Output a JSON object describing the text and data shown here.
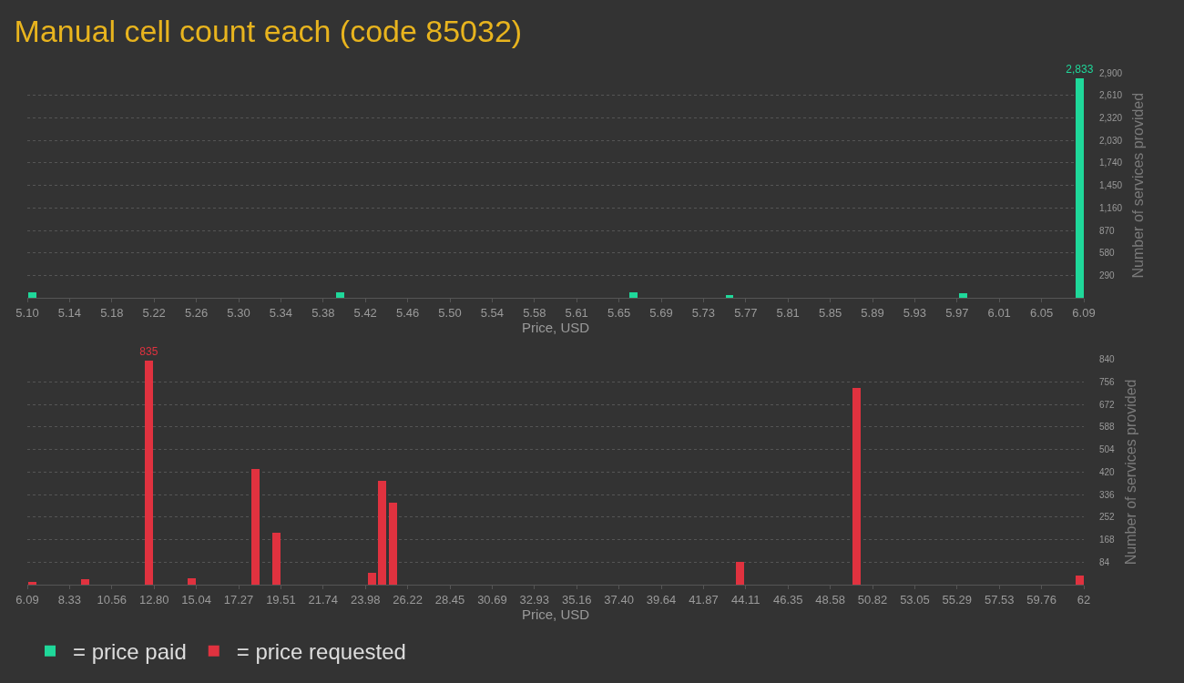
{
  "chart_data": [
    {
      "type": "bar",
      "title": "Manual cell count each (code 85032)",
      "xlabel": "Price, USD",
      "ylabel": "Number of services provided",
      "x": [
        5.105,
        5.393,
        5.668,
        5.758,
        5.977,
        6.086
      ],
      "series": [
        {
          "name": "= price paid",
          "color": "#1fd89a",
          "values": [
            70,
            70,
            70,
            40,
            60,
            2833
          ],
          "value_labels": [
            null,
            null,
            null,
            null,
            null,
            "2,833"
          ]
        }
      ],
      "xlim": [
        5.1,
        6.09
      ],
      "xticks": [
        {
          "value": 5.1,
          "label": "5.10"
        },
        {
          "value": 5.1396,
          "label": "5.14"
        },
        {
          "value": 5.1792,
          "label": "5.18"
        },
        {
          "value": 5.2188,
          "label": "5.22"
        },
        {
          "value": 5.2584,
          "label": "5.26"
        },
        {
          "value": 5.298,
          "label": "5.30"
        },
        {
          "value": 5.3376,
          "label": "5.34"
        },
        {
          "value": 5.3772,
          "label": "5.38"
        },
        {
          "value": 5.4168,
          "label": "5.42"
        },
        {
          "value": 5.4564,
          "label": "5.46"
        },
        {
          "value": 5.496,
          "label": "5.50"
        },
        {
          "value": 5.5356,
          "label": "5.54"
        },
        {
          "value": 5.5752,
          "label": "5.58"
        },
        {
          "value": 5.6148,
          "label": "5.61"
        },
        {
          "value": 5.6544,
          "label": "5.65"
        },
        {
          "value": 5.694,
          "label": "5.69"
        },
        {
          "value": 5.7336,
          "label": "5.73"
        },
        {
          "value": 5.7732,
          "label": "5.77"
        },
        {
          "value": 5.8128,
          "label": "5.81"
        },
        {
          "value": 5.8524,
          "label": "5.85"
        },
        {
          "value": 5.892,
          "label": "5.89"
        },
        {
          "value": 5.9316,
          "label": "5.93"
        },
        {
          "value": 5.9712,
          "label": "5.97"
        },
        {
          "value": 6.0108,
          "label": "6.01"
        },
        {
          "value": 6.0504,
          "label": "6.05"
        },
        {
          "value": 6.09,
          "label": "6.09"
        }
      ],
      "ylim": [
        0,
        2900
      ],
      "yticks": [
        {
          "value": 290,
          "label": "290"
        },
        {
          "value": 580,
          "label": "580"
        },
        {
          "value": 870,
          "label": "870"
        },
        {
          "value": 1160,
          "label": "1,160"
        },
        {
          "value": 1450,
          "label": "1,450"
        },
        {
          "value": 1740,
          "label": "1,740"
        },
        {
          "value": 2030,
          "label": "2,030"
        },
        {
          "value": 2320,
          "label": "2,320"
        },
        {
          "value": 2610,
          "label": "2,610"
        },
        {
          "value": 2900,
          "label": "2,900"
        }
      ],
      "grid": "y",
      "legend": "bottom left"
    },
    {
      "type": "bar",
      "xlabel": "Price, USD",
      "ylabel": "Number of services provided",
      "x": [
        6.37,
        9.17,
        12.54,
        14.79,
        18.16,
        19.26,
        24.32,
        24.88,
        25.44,
        43.81,
        49.99,
        61.77
      ],
      "series": [
        {
          "name": "= price requested",
          "color": "#e0323f",
          "values": [
            12,
            22,
            835,
            26,
            431,
            196,
            46,
            388,
            307,
            86,
            735,
            36
          ],
          "value_labels": [
            null,
            null,
            "835",
            null,
            null,
            null,
            null,
            null,
            null,
            null,
            null,
            null
          ]
        }
      ],
      "xlim": [
        6.09,
        62
      ],
      "xticks": [
        {
          "value": 6.09,
          "label": "6.09"
        },
        {
          "value": 8.3264,
          "label": "8.33"
        },
        {
          "value": 10.5628,
          "label": "10.56"
        },
        {
          "value": 12.7992,
          "label": "12.80"
        },
        {
          "value": 15.0356,
          "label": "15.04"
        },
        {
          "value": 17.272,
          "label": "17.27"
        },
        {
          "value": 19.5084,
          "label": "19.51"
        },
        {
          "value": 21.7448,
          "label": "21.74"
        },
        {
          "value": 23.9812,
          "label": "23.98"
        },
        {
          "value": 26.2176,
          "label": "26.22"
        },
        {
          "value": 28.454,
          "label": "28.45"
        },
        {
          "value": 30.6904,
          "label": "30.69"
        },
        {
          "value": 32.9268,
          "label": "32.93"
        },
        {
          "value": 35.1632,
          "label": "35.16"
        },
        {
          "value": 37.3996,
          "label": "37.40"
        },
        {
          "value": 39.636,
          "label": "39.64"
        },
        {
          "value": 41.8724,
          "label": "41.87"
        },
        {
          "value": 44.1088,
          "label": "44.11"
        },
        {
          "value": 46.3452,
          "label": "46.35"
        },
        {
          "value": 48.5816,
          "label": "48.58"
        },
        {
          "value": 50.818,
          "label": "50.82"
        },
        {
          "value": 53.0544,
          "label": "53.05"
        },
        {
          "value": 55.2908,
          "label": "55.29"
        },
        {
          "value": 57.5272,
          "label": "57.53"
        },
        {
          "value": 59.7636,
          "label": "59.76"
        },
        {
          "value": 62,
          "label": "62"
        }
      ],
      "ylim": [
        0,
        840
      ],
      "yticks": [
        84,
        168,
        252,
        336,
        420,
        504,
        588,
        672,
        756,
        840
      ],
      "grid": "y",
      "legend": "bottom left"
    }
  ]
}
